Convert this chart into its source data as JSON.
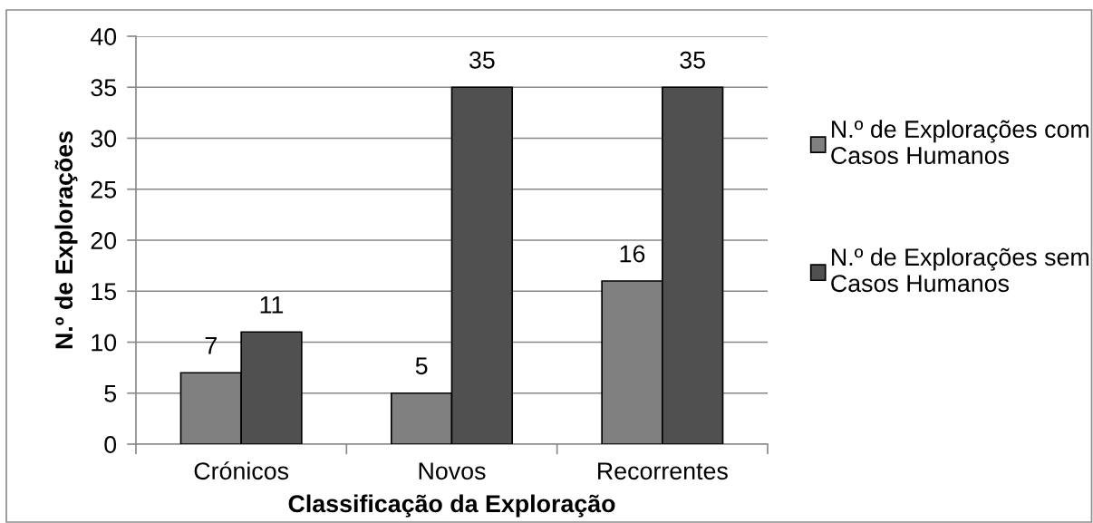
{
  "chart_data": {
    "type": "bar",
    "xlabel": "Classificação da Exploração",
    "ylabel": "N.º de Explorações",
    "categories": [
      "Crónicos",
      "Novos",
      "Recorrentes"
    ],
    "series": [
      {
        "name": "N.º de Explorações com\nCasos Humanos",
        "color": "#808080",
        "values": [
          7,
          5,
          16
        ]
      },
      {
        "name": "N.º de Explorações sem\nCasos Humanos",
        "color": "#505050",
        "values": [
          11,
          35,
          35
        ]
      }
    ],
    "ylim": [
      0,
      40
    ],
    "yticks": [
      0,
      5,
      10,
      15,
      20,
      25,
      30,
      35,
      40
    ],
    "grid": "y",
    "legend": "right",
    "data_labels": true
  }
}
